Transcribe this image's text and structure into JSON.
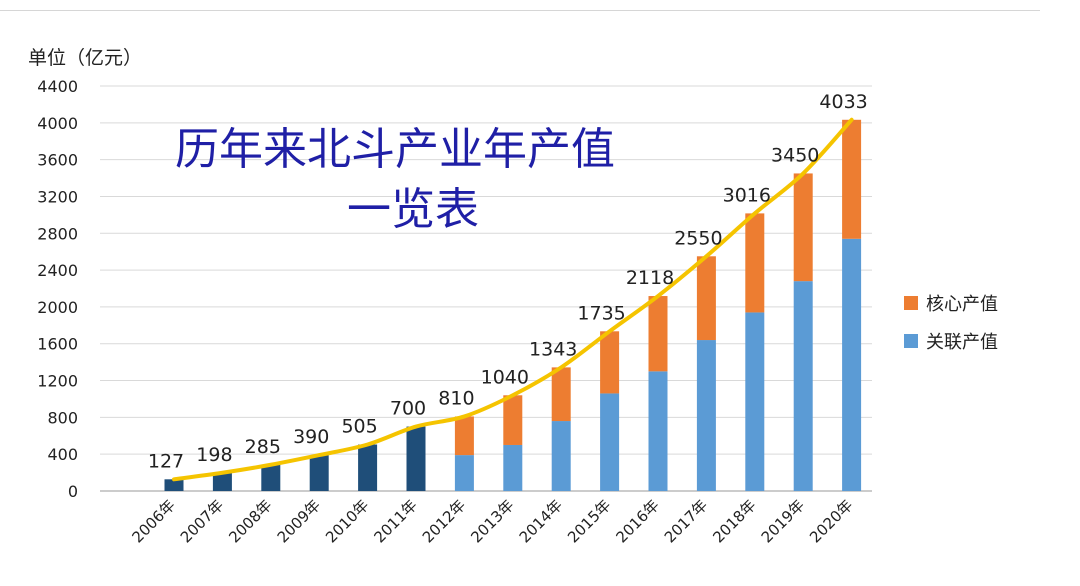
{
  "header_fragment": "",
  "footer_fragment": "",
  "chart_data": {
    "type": "bar",
    "title": [
      "历年来北斗产业年产值",
      "一览表"
    ],
    "unit_label": "单位（亿元）",
    "categories": [
      "2006年",
      "2007年",
      "2008年",
      "2009年",
      "2010年",
      "2011年",
      "2012年",
      "2013年",
      "2014年",
      "2015年",
      "2016年",
      "2017年",
      "2018年",
      "2019年",
      "2020年"
    ],
    "totals": [
      127,
      198,
      285,
      390,
      505,
      700,
      810,
      1040,
      1343,
      1735,
      2118,
      2550,
      3016,
      3450,
      4033
    ],
    "series": [
      {
        "name": "关联产值",
        "values": [
          null,
          null,
          null,
          null,
          null,
          null,
          390,
          500,
          760,
          1060,
          1300,
          1640,
          1940,
          2280,
          2740
        ],
        "color": "#5b9bd5"
      },
      {
        "name": "核心产值",
        "values": [
          null,
          null,
          null,
          null,
          null,
          null,
          420,
          540,
          583,
          675,
          818,
          910,
          1076,
          1170,
          1293
        ],
        "color": "#ed7d31"
      }
    ],
    "early_bar_color": "#1f4e79",
    "trend_line_color": "#f5c400",
    "ylim": [
      0,
      4400
    ],
    "yticks": [
      0,
      400,
      800,
      1200,
      1600,
      2000,
      2400,
      2800,
      3200,
      3600,
      4000,
      4400
    ],
    "legend_position": "right",
    "grid": true
  }
}
